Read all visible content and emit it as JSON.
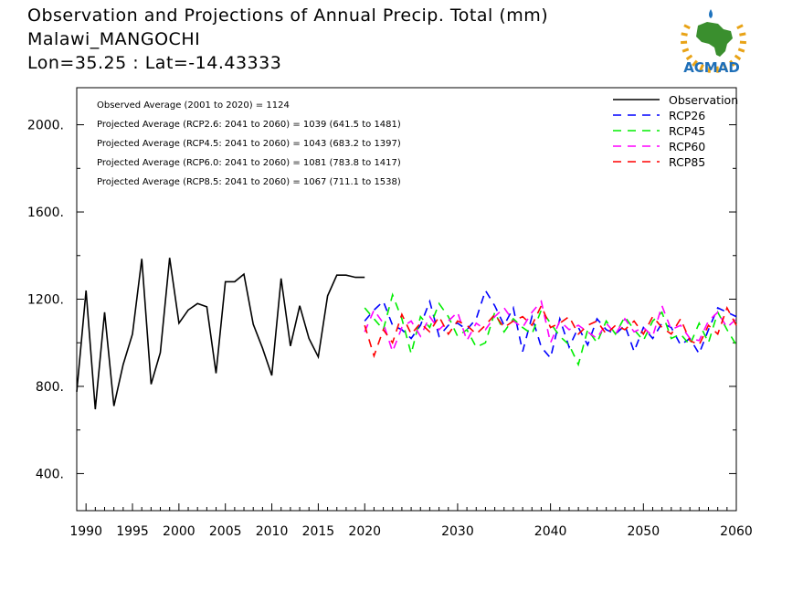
{
  "title": {
    "line1": "Observation and Projections of Annual Precip. Total (mm)",
    "line2": "Malawi_MANGOCHI",
    "line3": "Lon=35.25 : Lat=-14.43333"
  },
  "logo": {
    "text": "ACMAD",
    "colors": {
      "africa": "#3a8f2e",
      "rays": "#e8a317",
      "drop": "#1e73be",
      "text": "#1e6fb8"
    }
  },
  "annotations": [
    "Observed Average (2001 to 2020) = 1124",
    "Projected Average (RCP2.6: 2041 to 2060) = 1039 (641.5 to 1481)",
    "Projected Average (RCP4.5: 2041 to 2060) = 1043 (683.2 to 1397)",
    "Projected Average (RCP6.0: 2041 to 2060) = 1081 (783.8 to 1417)",
    "Projected Average (RCP8.5: 2041 to 2060) = 1067 (711.1 to 1538)"
  ],
  "chart_data": {
    "type": "line",
    "xlim": [
      1989,
      2060
    ],
    "ylim": [
      230,
      2170
    ],
    "x_ticks": [
      1990,
      1995,
      2000,
      2005,
      2010,
      2015,
      2020,
      2030,
      2040,
      2050,
      2060
    ],
    "y_ticks": [
      400,
      800,
      1200,
      1600,
      2000
    ],
    "y_tick_labels": [
      "400.",
      "800.",
      "1200.",
      "1600.",
      "2000."
    ],
    "legend_position": "top-right",
    "grid": false,
    "series": [
      {
        "name": "Observation",
        "color": "#000000",
        "dash": "solid",
        "x": [
          1989,
          1990,
          1991,
          1992,
          1993,
          1994,
          1995,
          1996,
          1997,
          1998,
          1999,
          2000,
          2001,
          2002,
          2003,
          2004,
          2005,
          2006,
          2007,
          2008,
          2009,
          2010,
          2011,
          2012,
          2013,
          2014,
          2015,
          2016,
          2017,
          2018,
          2019,
          2020
        ],
        "y": [
          775,
          1240,
          695,
          1140,
          710,
          900,
          1040,
          1385,
          810,
          955,
          1390,
          1090,
          1150,
          1180,
          1165,
          860,
          1280,
          1280,
          1315,
          1085,
          975,
          850,
          1295,
          985,
          1170,
          1020,
          935,
          1215,
          1310,
          1310,
          1300,
          1300
        ]
      },
      {
        "name": "RCP26",
        "color": "#0000ff",
        "dash": "dashed",
        "x": [
          2020,
          2021,
          2022,
          2023,
          2024,
          2025,
          2026,
          2027,
          2028,
          2029,
          2030,
          2031,
          2032,
          2033,
          2034,
          2035,
          2036,
          2037,
          2038,
          2039,
          2040,
          2041,
          2042,
          2043,
          2044,
          2045,
          2046,
          2047,
          2048,
          2049,
          2050,
          2051,
          2052,
          2053,
          2054,
          2055,
          2056,
          2057,
          2058,
          2059,
          2060
        ],
        "y": [
          1100,
          1150,
          1190,
          1080,
          1060,
          1020,
          1080,
          1190,
          1030,
          1080,
          1090,
          1060,
          1110,
          1240,
          1170,
          1080,
          1160,
          960,
          1120,
          980,
          930,
          1110,
          980,
          1070,
          990,
          1110,
          1060,
          1040,
          1080,
          960,
          1070,
          1020,
          1090,
          1070,
          990,
          1020,
          950,
          1060,
          1160,
          1140,
          1120
        ]
      },
      {
        "name": "RCP45",
        "color": "#00ee00",
        "dash": "dashed",
        "x": [
          2020,
          2021,
          2022,
          2023,
          2024,
          2025,
          2026,
          2027,
          2028,
          2029,
          2030,
          2031,
          2032,
          2033,
          2034,
          2035,
          2036,
          2037,
          2038,
          2039,
          2040,
          2041,
          2042,
          2043,
          2044,
          2045,
          2046,
          2047,
          2048,
          2049,
          2050,
          2051,
          2052,
          2053,
          2054,
          2055,
          2056,
          2057,
          2058,
          2059,
          2060
        ],
        "y": [
          1160,
          1110,
          1060,
          1220,
          1110,
          950,
          1120,
          1070,
          1180,
          1120,
          1030,
          1060,
          980,
          1000,
          1140,
          1050,
          1110,
          1070,
          1040,
          1150,
          1090,
          1030,
          990,
          900,
          1060,
          1000,
          1100,
          1040,
          1120,
          1060,
          1010,
          1100,
          1140,
          1020,
          1040,
          990,
          1090,
          1000,
          1140,
          1060,
          990
        ]
      },
      {
        "name": "RCP60",
        "color": "#ff00ff",
        "dash": "dashed",
        "x": [
          2020,
          2021,
          2022,
          2023,
          2024,
          2025,
          2026,
          2027,
          2028,
          2029,
          2030,
          2031,
          2032,
          2033,
          2034,
          2035,
          2036,
          2037,
          2038,
          2039,
          2040,
          2041,
          2042,
          2043,
          2044,
          2045,
          2046,
          2047,
          2048,
          2049,
          2050,
          2051,
          2052,
          2053,
          2054,
          2055,
          2056,
          2057,
          2058,
          2059,
          2060
        ],
        "y": [
          1050,
          1150,
          1090,
          960,
          1070,
          1100,
          1030,
          1120,
          1060,
          1100,
          1140,
          1010,
          1090,
          1060,
          1120,
          1160,
          1100,
          1070,
          1140,
          1190,
          1000,
          1100,
          1060,
          1080,
          1050,
          1020,
          1090,
          1040,
          1110,
          1050,
          1070,
          1030,
          1170,
          1060,
          1080,
          1020,
          1010,
          1100,
          1140,
          1070,
          1110
        ]
      },
      {
        "name": "RCP85",
        "color": "#ff0000",
        "dash": "dashed",
        "x": [
          2020,
          2021,
          2022,
          2023,
          2024,
          2025,
          2026,
          2027,
          2028,
          2029,
          2030,
          2031,
          2032,
          2033,
          2034,
          2035,
          2036,
          2037,
          2038,
          2039,
          2040,
          2041,
          2042,
          2043,
          2044,
          2045,
          2046,
          2047,
          2048,
          2049,
          2050,
          2051,
          2052,
          2053,
          2054,
          2055,
          2056,
          2057,
          2058,
          2059,
          2060
        ],
        "y": [
          1080,
          940,
          1060,
          1000,
          1130,
          1040,
          1090,
          1050,
          1120,
          1040,
          1100,
          1080,
          1040,
          1080,
          1130,
          1070,
          1100,
          1120,
          1080,
          1170,
          1070,
          1090,
          1120,
          1040,
          1080,
          1100,
          1040,
          1080,
          1060,
          1100,
          1040,
          1120,
          1070,
          1040,
          1110,
          1010,
          990,
          1080,
          1040,
          1160,
          1080
        ]
      }
    ]
  }
}
